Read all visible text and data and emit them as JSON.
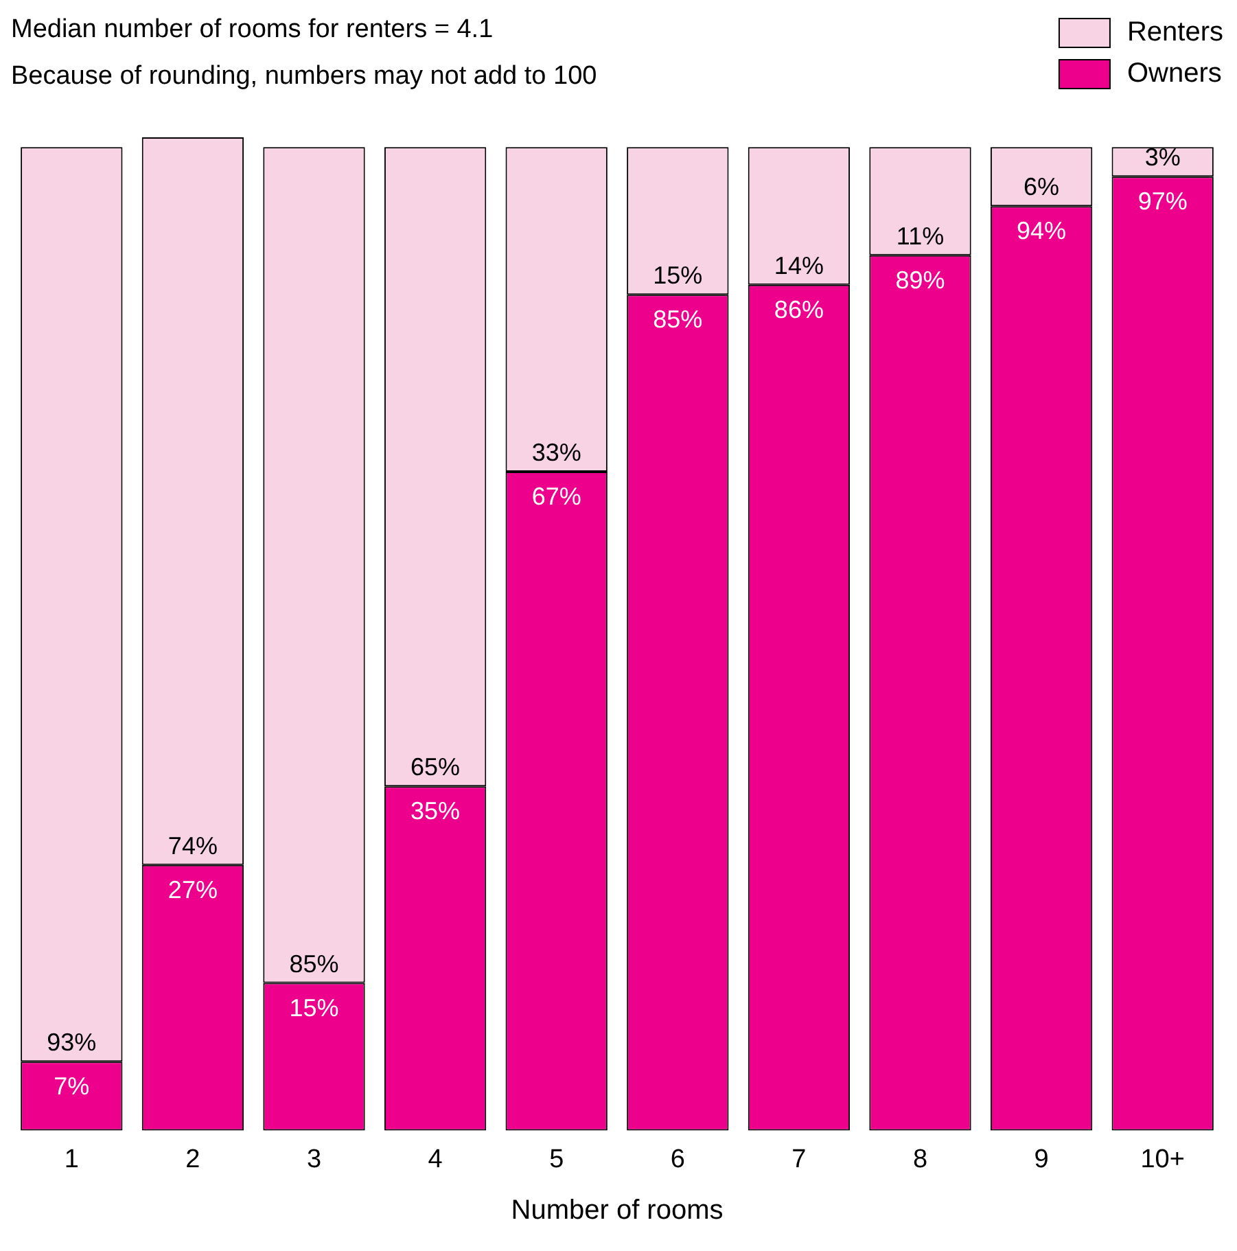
{
  "chart_data": {
    "type": "bar",
    "stacked": true,
    "xlabel": "Number of rooms",
    "annotations": [
      "Median number of rooms for renters = 4.1",
      "Because of rounding, numbers may not add to 100"
    ],
    "categories": [
      "1",
      "2",
      "3",
      "4",
      "5",
      "6",
      "7",
      "8",
      "9",
      "10+"
    ],
    "series": [
      {
        "name": "Owners",
        "color": "#ec008c",
        "values": [
          7,
          27,
          15,
          35,
          67,
          85,
          86,
          89,
          94,
          97
        ],
        "value_labels": [
          "7%",
          "27%",
          "15%",
          "35%",
          "67%",
          "85%",
          "86%",
          "89%",
          "94%",
          "97%"
        ]
      },
      {
        "name": "Renters",
        "color": "#f8d3e3",
        "values": [
          93,
          74,
          85,
          65,
          33,
          15,
          14,
          11,
          6,
          3
        ],
        "value_labels": [
          "93%",
          "74%",
          "85%",
          "65%",
          "33%",
          "15%",
          "14%",
          "11%",
          "6%",
          "3%"
        ]
      }
    ],
    "ylim": [
      0,
      101
    ],
    "grid": false,
    "legend": "top right"
  }
}
